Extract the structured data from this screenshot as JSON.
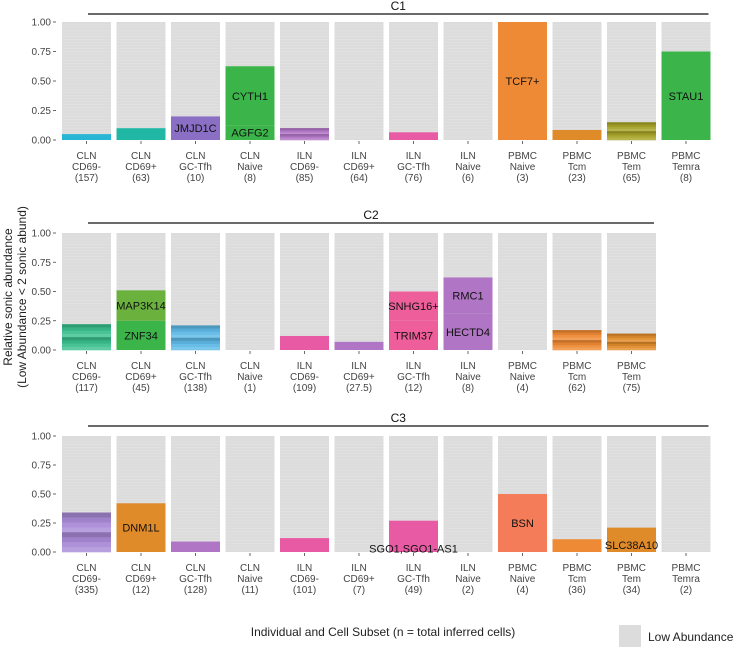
{
  "figure": {
    "ylabel_line1": "Relative sonic abundance",
    "ylabel_line2": "(Low Abundance < 2 sonic abund)",
    "xlabel": "Individual and Cell Subset (n = total inferred cells)",
    "legend_label": "Low Abundance",
    "colors": {
      "low_abundance": "#dcdcdc",
      "cyan": "#29b6d4",
      "teal": "#20b8a5",
      "purple": "#8a6fc4",
      "green": "#3bb54a",
      "pink": "#ee5e9a",
      "orange": "#ee8a35",
      "amber": "#e08b2a",
      "lime": "#6ab23d",
      "blue": "#3aa6dc",
      "mauve": "#b075c4",
      "salmon": "#f57c58",
      "magenta": "#e85aa3",
      "red": "#e8555a",
      "olive": "#a7a32a",
      "sky": "#5eb9e6",
      "lavender": "#a98ad6",
      "seafoam": "#3bbf8e"
    }
  },
  "chart_data": [
    {
      "type": "bar",
      "title": "C1",
      "ylim": [
        0,
        1
      ],
      "yticks": [
        "0.00",
        "0.25",
        "0.50",
        "0.75",
        "1.00"
      ],
      "categories": [
        [
          "CLN",
          "CD69-",
          "(157)"
        ],
        [
          "CLN",
          "CD69+",
          "(63)"
        ],
        [
          "CLN",
          "GC-Tfh",
          "(10)"
        ],
        [
          "CLN",
          "Naive",
          "(8)"
        ],
        [
          "ILN",
          "CD69-",
          "(85)"
        ],
        [
          "ILN",
          "CD69+",
          "(64)"
        ],
        [
          "ILN",
          "GC-Tfh",
          "(76)"
        ],
        [
          "ILN",
          "Naive",
          "(6)"
        ],
        [
          "PBMC",
          "Naive",
          "(3)"
        ],
        [
          "PBMC",
          "Tcm",
          "(23)"
        ],
        [
          "PBMC",
          "Tem",
          "(65)"
        ],
        [
          "PBMC",
          "Temra",
          "(8)"
        ]
      ],
      "bars": [
        {
          "segments": [
            {
              "value": 0.05,
              "color": "cyan"
            }
          ]
        },
        {
          "segments": [
            {
              "value": 0.1,
              "color": "teal"
            }
          ]
        },
        {
          "segments": [
            {
              "value": 0.2,
              "color": "purple",
              "label": "JMJD1C"
            }
          ]
        },
        {
          "segments": [
            {
              "value": 0.125,
              "color": "green",
              "label": "AGFG2"
            },
            {
              "value": 0.5,
              "color": "green",
              "label": "CYTH1"
            }
          ]
        },
        {
          "segments": [
            {
              "value": 0.1,
              "color": "mauve",
              "multi": true
            }
          ]
        },
        {
          "segments": []
        },
        {
          "segments": [
            {
              "value": 0.065,
              "color": "magenta"
            }
          ]
        },
        {
          "segments": []
        },
        {
          "segments": [
            {
              "value": 1.0,
              "color": "orange",
              "label": "TCF7+"
            }
          ]
        },
        {
          "segments": [
            {
              "value": 0.085,
              "color": "amber"
            }
          ]
        },
        {
          "segments": [
            {
              "value": 0.15,
              "color": "olive",
              "multi": true
            }
          ]
        },
        {
          "segments": [
            {
              "value": 0.75,
              "color": "green",
              "label": "STAU1"
            }
          ]
        }
      ]
    },
    {
      "type": "bar",
      "title": "C2",
      "ylim": [
        0,
        1
      ],
      "yticks": [
        "0.00",
        "0.25",
        "0.50",
        "0.75",
        "1.00"
      ],
      "categories": [
        [
          "CLN",
          "CD69-",
          "(117)"
        ],
        [
          "CLN",
          "CD69+",
          "(45)"
        ],
        [
          "CLN",
          "GC-Tfh",
          "(138)"
        ],
        [
          "CLN",
          "Naive",
          "(1)"
        ],
        [
          "ILN",
          "CD69-",
          "(109)"
        ],
        [
          "ILN",
          "CD69+",
          "(27.5)"
        ],
        [
          "ILN",
          "GC-Tfh",
          "(12)"
        ],
        [
          "ILN",
          "Naive",
          "(8)"
        ],
        [
          "PBMC",
          "Naive",
          "(4)"
        ],
        [
          "PBMC",
          "Tcm",
          "(62)"
        ],
        [
          "PBMC",
          "Tem",
          "(75)"
        ]
      ],
      "bars": [
        {
          "segments": [
            {
              "value": 0.22,
              "color": "seafoam",
              "multi": true
            }
          ]
        },
        {
          "segments": [
            {
              "value": 0.25,
              "color": "green",
              "label": "ZNF34"
            },
            {
              "value": 0.26,
              "color": "lime",
              "label": "MAP3K14"
            }
          ]
        },
        {
          "segments": [
            {
              "value": 0.21,
              "color": "sky",
              "multi": true
            }
          ]
        },
        {
          "segments": []
        },
        {
          "segments": [
            {
              "value": 0.12,
              "color": "magenta"
            }
          ]
        },
        {
          "segments": [
            {
              "value": 0.07,
              "color": "mauve"
            }
          ]
        },
        {
          "segments": [
            {
              "value": 0.25,
              "color": "pink",
              "label": "TRIM37"
            },
            {
              "value": 0.25,
              "color": "pink",
              "label": "SNHG16+"
            }
          ]
        },
        {
          "segments": [
            {
              "value": 0.31,
              "color": "mauve",
              "label": "HECTD4"
            },
            {
              "value": 0.31,
              "color": "mauve",
              "label": "RMC1"
            }
          ]
        },
        {
          "segments": []
        },
        {
          "segments": [
            {
              "value": 0.17,
              "color": "orange",
              "multi": true
            }
          ]
        },
        {
          "segments": [
            {
              "value": 0.14,
              "color": "amber",
              "multi": true
            }
          ]
        }
      ]
    },
    {
      "type": "bar",
      "title": "C3",
      "ylim": [
        0,
        1
      ],
      "yticks": [
        "0.00",
        "0.25",
        "0.50",
        "0.75",
        "1.00"
      ],
      "categories": [
        [
          "CLN",
          "CD69-",
          "(335)"
        ],
        [
          "CLN",
          "CD69+",
          "(12)"
        ],
        [
          "CLN",
          "GC-Tfh",
          "(128)"
        ],
        [
          "CLN",
          "Naive",
          "(11)"
        ],
        [
          "ILN",
          "CD69-",
          "(101)"
        ],
        [
          "ILN",
          "CD69+",
          "(7)"
        ],
        [
          "ILN",
          "GC-Tfh",
          "(49)"
        ],
        [
          "ILN",
          "Naive",
          "(2)"
        ],
        [
          "PBMC",
          "Naive",
          "(4)"
        ],
        [
          "PBMC",
          "Tcm",
          "(36)"
        ],
        [
          "PBMC",
          "Tem",
          "(34)"
        ],
        [
          "PBMC",
          "Temra",
          "(2)"
        ]
      ],
      "bars": [
        {
          "segments": [
            {
              "value": 0.34,
              "color": "lavender",
              "multi": true
            }
          ]
        },
        {
          "segments": [
            {
              "value": 0.42,
              "color": "amber",
              "label": "DNM1L"
            }
          ]
        },
        {
          "segments": [
            {
              "value": 0.09,
              "color": "mauve"
            }
          ]
        },
        {
          "segments": []
        },
        {
          "segments": [
            {
              "value": 0.12,
              "color": "magenta"
            }
          ]
        },
        {
          "segments": []
        },
        {
          "segments": [
            {
              "value": 0.27,
              "color": "magenta"
            }
          ]
        },
        {
          "segments": []
        },
        {
          "segments": [
            {
              "value": 0.5,
              "color": "salmon",
              "label": "BSN"
            }
          ]
        },
        {
          "segments": [
            {
              "value": 0.11,
              "color": "orange"
            }
          ]
        },
        {
          "segments": [
            {
              "value": 0.21,
              "color": "amber"
            }
          ]
        },
        {
          "segments": []
        }
      ],
      "annotations": [
        {
          "text": "SGO1,SGO1-AS1",
          "bar_index": 6,
          "value": 0.03
        },
        {
          "text": "SLC38A10",
          "bar_index": 10,
          "value": 0.06
        }
      ]
    }
  ]
}
